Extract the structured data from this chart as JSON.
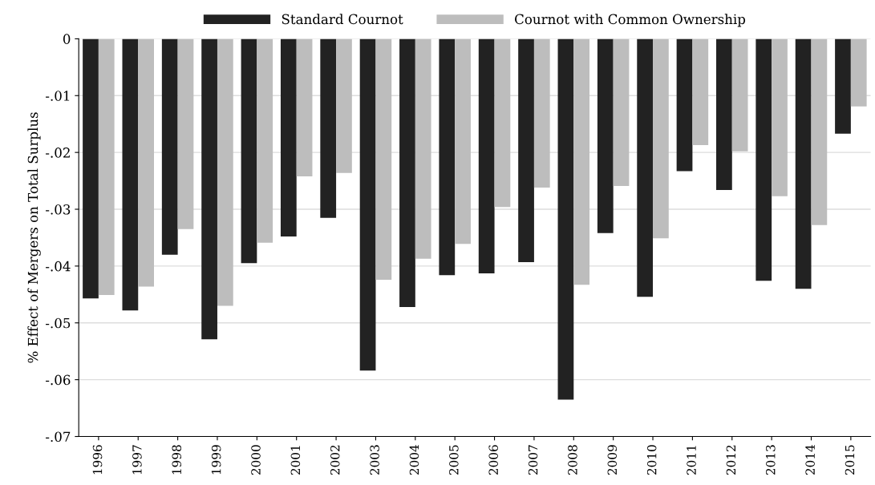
{
  "chart_data": {
    "type": "bar",
    "ylabel": "% Effect of Mergers on Total Surplus",
    "categories": [
      "1996",
      "1997",
      "1998",
      "1999",
      "2000",
      "2001",
      "2002",
      "2003",
      "2004",
      "2005",
      "2006",
      "2007",
      "2008",
      "2009",
      "2010",
      "2011",
      "2012",
      "2013",
      "2014",
      "2015"
    ],
    "series": [
      {
        "name": "Standard Cournot",
        "color": "#222222",
        "values": [
          -0.0457,
          -0.0478,
          -0.038,
          -0.0529,
          -0.0395,
          -0.0348,
          -0.0315,
          -0.0584,
          -0.0472,
          -0.0416,
          -0.0413,
          -0.0393,
          -0.0635,
          -0.0342,
          -0.0454,
          -0.0233,
          -0.0266,
          -0.0426,
          -0.044,
          -0.0167
        ]
      },
      {
        "name": "Cournot with Common Ownership",
        "color": "#bdbdbd",
        "values": [
          -0.0451,
          -0.0436,
          -0.0335,
          -0.047,
          -0.0359,
          -0.0242,
          -0.0236,
          -0.0424,
          -0.0387,
          -0.0361,
          -0.0296,
          -0.0262,
          -0.0433,
          -0.0259,
          -0.0351,
          -0.0187,
          -0.0198,
          -0.0277,
          -0.0328,
          -0.0119
        ]
      }
    ],
    "ylim": [
      -0.07,
      0
    ],
    "yticks": [
      {
        "value": -0.07,
        "label": "-.07"
      },
      {
        "value": -0.06,
        "label": "-.06"
      },
      {
        "value": -0.05,
        "label": "-.05"
      },
      {
        "value": -0.04,
        "label": "-.04"
      },
      {
        "value": -0.03,
        "label": "-.03"
      },
      {
        "value": -0.02,
        "label": "-.02"
      },
      {
        "value": -0.01,
        "label": "-.01"
      },
      {
        "value": 0,
        "label": "0"
      }
    ],
    "grid": "y",
    "legend": "top"
  }
}
